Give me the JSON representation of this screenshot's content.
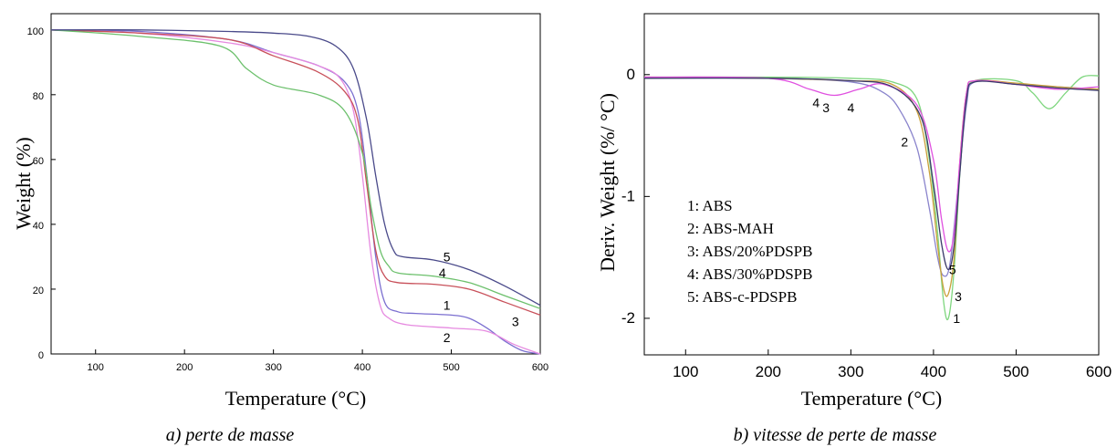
{
  "chart_data": [
    {
      "id": "a",
      "type": "line",
      "caption": "a) perte de masse",
      "xlabel": "Temperature",
      "xunit": "°C",
      "ylabel": "Weight (%)",
      "xlim": [
        50,
        600
      ],
      "ylim": [
        0,
        105
      ],
      "xticks": [
        100,
        200,
        300,
        400,
        500,
        600
      ],
      "yticks": [
        0,
        20,
        40,
        60,
        80,
        100
      ],
      "series": [
        {
          "id": "1",
          "color": "#7b6fd0",
          "label_at": [
            495,
            15
          ],
          "x": [
            50,
            150,
            250,
            300,
            350,
            380,
            395,
            405,
            415,
            425,
            440,
            460,
            500,
            520,
            540,
            560,
            580,
            600
          ],
          "y": [
            100,
            99.5,
            97,
            93,
            89,
            84,
            75,
            55,
            30,
            16,
            13,
            12.5,
            12,
            11,
            8,
            4,
            1,
            0
          ]
        },
        {
          "id": "2",
          "color": "#e68ae0",
          "label_at": [
            495,
            5
          ],
          "x": [
            50,
            150,
            250,
            300,
            350,
            375,
            390,
            400,
            410,
            420,
            430,
            450,
            500,
            540,
            570,
            600
          ],
          "y": [
            100,
            99,
            96,
            93,
            89,
            85,
            75,
            55,
            30,
            15,
            11,
            9,
            8,
            7,
            3,
            0
          ]
        },
        {
          "id": "3",
          "color": "#c8505a",
          "label_at": [
            572,
            10
          ],
          "x": [
            50,
            150,
            250,
            300,
            350,
            380,
            395,
            405,
            415,
            425,
            440,
            480,
            520,
            560,
            600
          ],
          "y": [
            100,
            99,
            97,
            92,
            87,
            81,
            72,
            52,
            32,
            24,
            22,
            21.5,
            20,
            16,
            12
          ]
        },
        {
          "id": "4",
          "color": "#6cc06c",
          "label_at": [
            490,
            25
          ],
          "x": [
            50,
            150,
            240,
            270,
            300,
            350,
            380,
            400,
            410,
            420,
            430,
            440,
            480,
            520,
            560,
            600
          ],
          "y": [
            100,
            98,
            95,
            88,
            83,
            80,
            75,
            62,
            45,
            32,
            27,
            25,
            24,
            22,
            18,
            14
          ]
        },
        {
          "id": "5",
          "color": "#4a4a8a",
          "label_at": [
            495,
            30
          ],
          "x": [
            50,
            150,
            250,
            300,
            340,
            370,
            390,
            405,
            415,
            425,
            435,
            445,
            480,
            520,
            560,
            600
          ],
          "y": [
            100,
            100,
            99.5,
            99,
            98,
            95,
            88,
            72,
            55,
            40,
            32,
            30,
            29,
            26,
            21,
            15
          ]
        }
      ]
    },
    {
      "id": "b",
      "type": "line",
      "caption": "b) vitesse de perte de masse",
      "xlabel": "Temperature",
      "xunit": "°C",
      "ylabel": "Deriv. Weight (%/ °C)",
      "xlim": [
        50,
        600
      ],
      "ylim": [
        -2.3,
        0.5
      ],
      "xticks": [
        100,
        200,
        300,
        400,
        500,
        600
      ],
      "yticks": [
        -2,
        -1,
        0
      ],
      "legend": [
        "1: ABS",
        "2: ABS-MAH",
        "3: ABS/20%PDSPB",
        "4: ABS/30%PDSPB",
        "5: ABS-c-PDSPB"
      ],
      "series": [
        {
          "id": "1",
          "color": "#7ed67e",
          "label_at": [
            428,
            -2.0
          ],
          "x": [
            50,
            200,
            300,
            350,
            380,
            395,
            405,
            412,
            418,
            425,
            432,
            440,
            450,
            500,
            520,
            540,
            560,
            580,
            600
          ],
          "y": [
            -0.02,
            -0.02,
            -0.03,
            -0.06,
            -0.2,
            -0.7,
            -1.3,
            -1.85,
            -2.0,
            -1.6,
            -0.8,
            -0.2,
            -0.05,
            -0.05,
            -0.15,
            -0.28,
            -0.15,
            -0.02,
            -0.01
          ]
        },
        {
          "id": "2",
          "color": "#8a84cc",
          "label_at": [
            365,
            -0.55
          ],
          "x": [
            50,
            200,
            300,
            340,
            360,
            380,
            395,
            405,
            412,
            420,
            430,
            440,
            450,
            500,
            550,
            600
          ],
          "y": [
            -0.03,
            -0.03,
            -0.06,
            -0.15,
            -0.3,
            -0.6,
            -1.1,
            -1.5,
            -1.65,
            -1.55,
            -0.9,
            -0.25,
            -0.06,
            -0.08,
            -0.1,
            -0.12
          ]
        },
        {
          "id": "3",
          "color": "#c9a03a",
          "label_at": [
            430,
            -1.82
          ],
          "x": [
            50,
            200,
            300,
            350,
            380,
            395,
            405,
            412,
            418,
            425,
            432,
            440,
            450,
            500,
            550,
            600
          ],
          "y": [
            -0.02,
            -0.03,
            -0.05,
            -0.08,
            -0.3,
            -0.8,
            -1.4,
            -1.75,
            -1.8,
            -1.5,
            -0.7,
            -0.15,
            -0.05,
            -0.07,
            -0.1,
            -0.12
          ]
        },
        {
          "id": "4",
          "color": "#e050e0",
          "label_at": [
            258,
            -0.23
          ],
          "x": [
            50,
            200,
            250,
            280,
            310,
            340,
            380,
            400,
            410,
            418,
            425,
            432,
            440,
            450,
            500,
            550,
            600
          ],
          "y": [
            -0.02,
            -0.03,
            -0.12,
            -0.17,
            -0.12,
            -0.08,
            -0.25,
            -0.7,
            -1.2,
            -1.45,
            -1.3,
            -0.7,
            -0.15,
            -0.05,
            -0.08,
            -0.12,
            -0.1
          ]
        },
        {
          "id": "5",
          "color": "#3a3a6a",
          "label_at": [
            423,
            -1.6
          ],
          "x": [
            50,
            200,
            300,
            350,
            385,
            400,
            410,
            418,
            425,
            432,
            440,
            450,
            500,
            550,
            600
          ],
          "y": [
            -0.03,
            -0.03,
            -0.05,
            -0.1,
            -0.35,
            -0.9,
            -1.4,
            -1.6,
            -1.4,
            -0.8,
            -0.2,
            -0.06,
            -0.08,
            -0.11,
            -0.13
          ]
        }
      ],
      "extra_labels": [
        {
          "text": "3",
          "at": [
            270,
            -0.27
          ],
          "bold": false
        },
        {
          "text": "4",
          "at": [
            300,
            -0.27
          ],
          "bold": false
        }
      ]
    }
  ]
}
